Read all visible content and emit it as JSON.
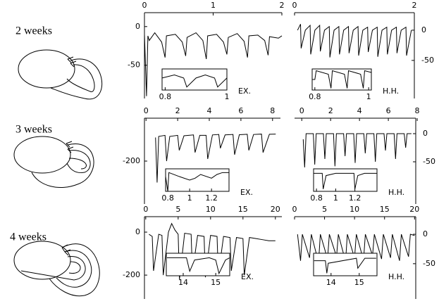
{
  "labels": [
    "2 weeks",
    "3 weeks",
    "4 weeks"
  ],
  "chart_data": [
    {
      "type": "line",
      "label": "EX.",
      "yaxis_position": "left",
      "color": "#000000",
      "xlim": [
        0,
        2
      ],
      "xticks": [
        0,
        1,
        2
      ],
      "ylim": [
        -93,
        18
      ],
      "yticks": [
        0,
        -50
      ],
      "x": [
        0,
        0.03,
        0.05,
        0.07,
        0.15,
        0.25,
        0.3,
        0.32,
        0.45,
        0.55,
        0.6,
        0.62,
        0.75,
        0.85,
        0.9,
        0.92,
        1.05,
        1.15,
        1.2,
        1.22,
        1.35,
        1.45,
        1.5,
        1.52,
        1.65,
        1.75,
        1.8,
        1.82,
        1.95,
        2
      ],
      "values": [
        -10,
        -90,
        -12,
        -18,
        -8,
        -20,
        -40,
        -12,
        -10,
        -20,
        -38,
        -14,
        -8,
        -18,
        -42,
        -12,
        -10,
        -20,
        -36,
        -14,
        -9,
        -19,
        -40,
        -12,
        -11,
        -18,
        -37,
        -13,
        -15,
        -12
      ],
      "inset": {
        "xlim": [
          0.79,
          1.0
        ],
        "xticks": [
          0.8,
          1
        ],
        "ylim": [
          -4,
          3
        ],
        "x": [
          0.79,
          0.83,
          0.86,
          0.87,
          0.9,
          0.93,
          0.96,
          0.97,
          1.0
        ],
        "values": [
          0,
          1,
          0,
          -3,
          0,
          1,
          0,
          -3,
          0
        ]
      }
    },
    {
      "type": "line",
      "label": "H.H.",
      "yaxis_position": "right",
      "color": "#000000",
      "xlim": [
        0,
        2
      ],
      "xticks": [
        0,
        2
      ],
      "ylim": [
        -113,
        29
      ],
      "yticks": [
        0,
        -50
      ],
      "x": [
        0.05,
        0.1,
        0.11,
        0.18,
        0.26,
        0.27,
        0.34,
        0.42,
        0.43,
        0.5,
        0.58,
        0.59,
        0.66,
        0.74,
        0.75,
        0.82,
        0.9,
        0.91,
        0.98,
        1.06,
        1.07,
        1.14,
        1.22,
        1.23,
        1.3,
        1.38,
        1.39,
        1.46,
        1.54,
        1.55,
        1.62,
        1.7,
        1.71,
        1.78,
        1.86,
        1.87,
        1.95
      ],
      "values": [
        0,
        10,
        -30,
        0,
        8,
        -40,
        0,
        8,
        -35,
        0,
        6,
        -45,
        0,
        6,
        -40,
        0,
        6,
        -38,
        0,
        6,
        -42,
        0,
        5,
        -36,
        0,
        5,
        -44,
        0,
        5,
        -40,
        0,
        5,
        -38,
        0,
        5,
        -42,
        0
      ],
      "inset": {
        "xlim": [
          0.79,
          1.01
        ],
        "xticks": [
          0.8,
          1
        ],
        "ylim": [
          -6,
          6
        ],
        "x": [
          0.79,
          0.8,
          0.805,
          0.85,
          0.86,
          0.865,
          0.91,
          0.92,
          0.925,
          0.97,
          0.98,
          0.985,
          1.01
        ],
        "values": [
          0,
          0,
          5,
          3,
          -5,
          5,
          3,
          -5,
          5,
          3,
          -5,
          5,
          4
        ]
      }
    },
    {
      "type": "line",
      "label": "EX.",
      "yaxis_position": "left",
      "color": "#000000",
      "xlim": [
        -0.1,
        8.5
      ],
      "xticks": [
        0,
        2,
        4,
        6,
        8
      ],
      "ylim": [
        -400,
        0
      ],
      "yticks": [
        -200
      ],
      "x": [
        0.6,
        0.7,
        0.8,
        1.2,
        1.3,
        1.5,
        2.0,
        2.1,
        2.4,
        3.0,
        3.1,
        3.4,
        3.8,
        3.9,
        4.2,
        4.6,
        4.7,
        5.0,
        5.5,
        5.6,
        5.9,
        6.4,
        6.5,
        6.8,
        7.3,
        7.4,
        7.8,
        8.2
      ],
      "values": [
        -90,
        -300,
        -85,
        -80,
        -200,
        -85,
        -80,
        -150,
        -82,
        -78,
        -160,
        -80,
        -80,
        -190,
        -78,
        -76,
        -140,
        -78,
        -76,
        -170,
        -77,
        -75,
        -150,
        -76,
        -74,
        -160,
        -75,
        -74
      ],
      "inset": {
        "xlim": [
          0.78,
          1.36
        ],
        "xticks": [
          0.8,
          1,
          1.2
        ],
        "ylim": [
          -8,
          4
        ],
        "x": [
          0.78,
          0.8,
          0.81,
          0.9,
          1.0,
          1.05,
          1.1,
          1.2,
          1.25,
          1.3,
          1.36
        ],
        "values": [
          0,
          -8,
          2,
          0,
          -2,
          -1,
          1,
          -1,
          1,
          2,
          2
        ]
      }
    },
    {
      "type": "line",
      "label": "H.H.",
      "yaxis_position": "right",
      "color": "#000000",
      "xlim": [
        -0.5,
        7.9
      ],
      "xticks": [
        0,
        2,
        4,
        6,
        8
      ],
      "ylim": [
        -125,
        27.5
      ],
      "yticks": [
        0,
        -50
      ],
      "x": [
        0.1,
        0.2,
        0.3,
        0.8,
        0.9,
        1.0,
        1.5,
        1.6,
        1.7,
        2.2,
        2.3,
        2.4,
        2.9,
        3.0,
        3.1,
        3.6,
        3.7,
        3.8,
        4.3,
        4.4,
        4.5,
        5.0,
        5.1,
        5.2,
        5.7,
        5.8,
        5.9,
        6.4,
        6.5,
        6.6,
        7.1,
        7.2,
        7.3,
        7.6
      ],
      "values": [
        -10,
        -60,
        0,
        0,
        -55,
        0,
        0,
        -45,
        0,
        0,
        -58,
        0,
        0,
        -40,
        0,
        0,
        -52,
        0,
        0,
        -35,
        0,
        0,
        -50,
        0,
        0,
        -30,
        0,
        0,
        -45,
        0,
        0,
        -25,
        0,
        0
      ],
      "inset": {
        "xlim": [
          0.77,
          1.43
        ],
        "xticks": [
          0.8,
          1,
          1.2
        ],
        "ylim": [
          -7,
          3
        ],
        "x": [
          0.77,
          0.86,
          0.87,
          0.9,
          1.0,
          1.19,
          1.2,
          1.23,
          1.3,
          1.43
        ],
        "values": [
          1,
          1,
          -6,
          0,
          1,
          1,
          -6,
          0,
          1,
          1
        ]
      }
    },
    {
      "type": "line",
      "label": "EX.",
      "yaxis_position": "left",
      "color": "#000000",
      "xlim": [
        -0.2,
        21
      ],
      "xticks": [
        0,
        5,
        10,
        15,
        20
      ],
      "ylim": [
        -311,
        72
      ],
      "yticks": [
        0,
        -200
      ],
      "x": [
        0.5,
        1,
        1.2,
        2,
        2.5,
        2.7,
        3.5,
        4,
        4.5,
        5,
        5.2,
        6,
        7,
        7.2,
        8,
        9,
        9.2,
        10,
        11,
        11.2,
        12,
        13,
        13.2,
        14,
        15,
        15.2,
        16,
        17,
        18,
        19,
        20
      ],
      "values": [
        -10,
        -20,
        -180,
        -10,
        -15,
        -200,
        0,
        40,
        10,
        -10,
        -220,
        -5,
        -10,
        -190,
        -15,
        -20,
        -210,
        -15,
        -20,
        -200,
        -20,
        -25,
        -180,
        -25,
        -30,
        -200,
        -25,
        -30,
        -35,
        -40,
        -40
      ],
      "inset": {
        "xlim": [
          13.48,
          15.43
        ],
        "xticks": [
          14,
          15
        ],
        "ylim": [
          -6,
          4
        ],
        "x": [
          13.5,
          14.1,
          14.2,
          14.35,
          14.8,
          15.0,
          15.1,
          15.3,
          15.43
        ],
        "values": [
          2,
          2,
          -4,
          1,
          2,
          1,
          -5,
          1,
          2
        ]
      }
    },
    {
      "type": "line",
      "label": "H.H.",
      "yaxis_position": "right",
      "color": "#000000",
      "xlim": [
        0,
        20.2
      ],
      "xticks": [
        0,
        5,
        10,
        15,
        20
      ],
      "ylim": [
        -110,
        30
      ],
      "yticks": [
        0,
        -50
      ],
      "x": [
        0.5,
        1,
        1.3,
        2.5,
        2.8,
        4,
        4.3,
        5.5,
        5.8,
        7,
        7.3,
        8.5,
        8.8,
        10,
        10.3,
        11.5,
        11.8,
        13,
        13.3,
        14.5,
        14.8,
        16,
        16.3,
        17.5,
        17.8,
        19,
        19.3,
        20
      ],
      "values": [
        0,
        -45,
        0,
        -40,
        0,
        -48,
        0,
        -42,
        0,
        -38,
        0,
        -46,
        0,
        -40,
        0,
        -44,
        0,
        -36,
        0,
        -42,
        0,
        -40,
        0,
        -45,
        0,
        -38,
        0,
        -2
      ],
      "inset": {
        "xlim": [
          13.38,
          15.63
        ],
        "xticks": [
          14,
          15
        ],
        "ylim": [
          -6,
          3
        ],
        "x": [
          13.4,
          13.8,
          13.85,
          13.9,
          14.9,
          14.95,
          15.2,
          15.6
        ],
        "values": [
          0,
          0,
          -5,
          -1,
          1,
          -3,
          1,
          1
        ]
      }
    }
  ]
}
